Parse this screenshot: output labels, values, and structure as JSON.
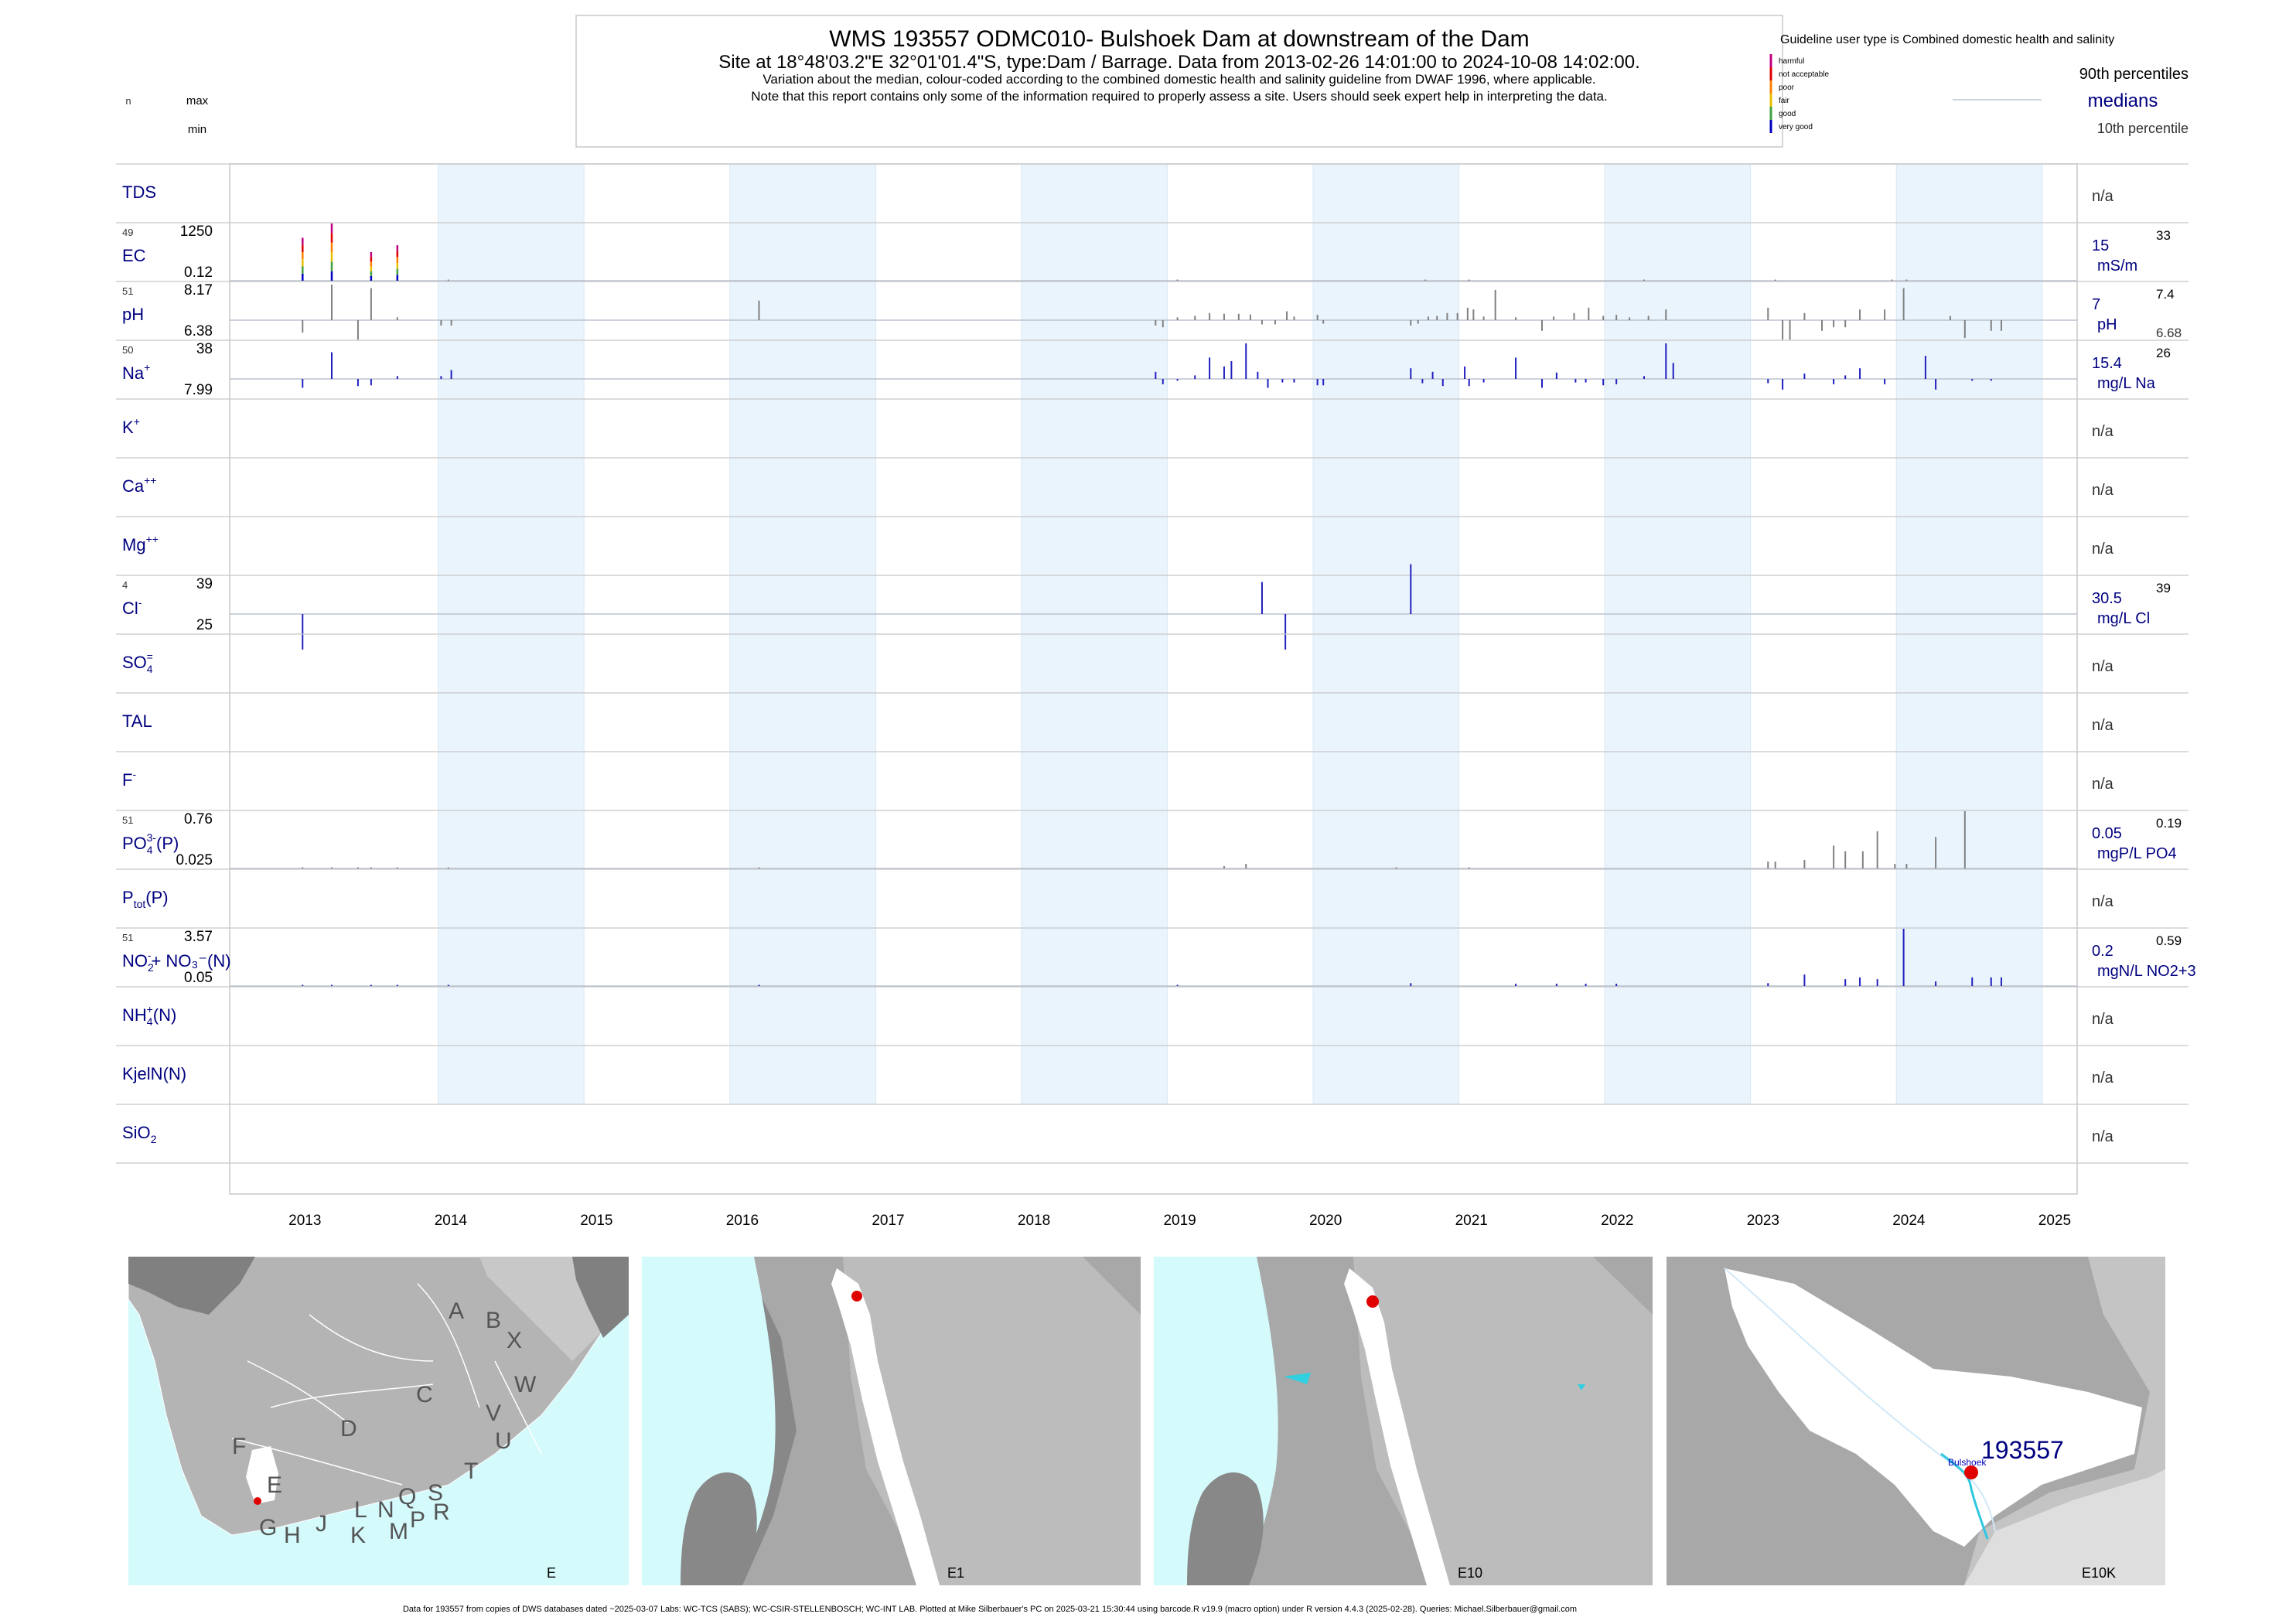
{
  "header": {
    "title": "WMS 193557  ODMC010- Bulshoek Dam at downstream of the Dam",
    "subtitle": "Site at 18°48'03.2\"E 32°01'01.4\"S, type:Dam / Barrage.  Data from 2013-02-26 14:01:00 to 2024-10-08 14:02:00.",
    "note1": "Variation about the median,  colour-coded according to the combined domestic health and salinity guideline from DWAF 1996, where applicable.",
    "note2": "Note that this report contains only some of the information required to properly assess a site. Users should seek expert help in interpreting the data."
  },
  "left_key": {
    "n": "n",
    "max": "max",
    "min": "min"
  },
  "legend": {
    "guideline": "Guideline user type is Combined domestic health and salinity",
    "categories": [
      {
        "label": "harmful",
        "color": "#c00080"
      },
      {
        "label": "not acceptable",
        "color": "#e00000"
      },
      {
        "label": "poor",
        "color": "#ff8000"
      },
      {
        "label": "fair",
        "color": "#e8c000"
      },
      {
        "label": "good",
        "color": "#40a040"
      },
      {
        "label": "very good",
        "color": "#0000c0"
      }
    ],
    "p90": "90th percentiles",
    "medians": "medians",
    "p10": "10th percentile"
  },
  "chart_data": {
    "type": "bar",
    "x_axis": {
      "ticks": [
        "2013",
        "2014",
        "2015",
        "2016",
        "2017",
        "2018",
        "2019",
        "2020",
        "2021",
        "2022",
        "2023",
        "2024",
        "2025"
      ],
      "range": [
        "2012-07-01",
        "2025-03-01"
      ]
    },
    "shaded_years": [
      "2014",
      "2016",
      "2018",
      "2020",
      "2022",
      "2024"
    ],
    "colors": {
      "bar_gray": "#808080",
      "bar_blue": "#2020c0",
      "shade": "#eaf4fc",
      "frame": "#c8c8c8"
    },
    "panels": [
      {
        "param": "TDS",
        "sup": "",
        "sub": "",
        "suffix": "",
        "na": "n/a"
      },
      {
        "param": "EC",
        "sup": "",
        "sub": "",
        "suffix": "",
        "n": "49",
        "max": "1250",
        "min": "0.12",
        "median": "15",
        "p90": "33",
        "unit": "mS/m",
        "color": "gray",
        "bars": [
          {
            "x": 2013.0,
            "v": 0.75,
            "colored": true
          },
          {
            "x": 2013.2,
            "v": 1.0,
            "colored": true
          },
          {
            "x": 2013.47,
            "v": 0.5,
            "colored": true
          },
          {
            "x": 2013.65,
            "v": 0.62,
            "colored": true
          },
          {
            "x": 2014.0,
            "v": 0.02
          },
          {
            "x": 2019.0,
            "v": 0.02
          },
          {
            "x": 2020.7,
            "v": 0.02
          },
          {
            "x": 2021.0,
            "v": 0.02
          },
          {
            "x": 2022.2,
            "v": 0.02
          },
          {
            "x": 2023.1,
            "v": 0.02
          },
          {
            "x": 2023.9,
            "v": 0.02
          },
          {
            "x": 2024.0,
            "v": 0.02
          }
        ]
      },
      {
        "param": "pH",
        "sup": "",
        "sub": "",
        "suffix": "",
        "n": "51",
        "max": "8.17",
        "min": "6.38",
        "median": "7",
        "p90": "7.4",
        "p10": "6.68",
        "unit": "pH",
        "color": "gray",
        "bars": [
          {
            "x": 2013.0,
            "v": -0.35
          },
          {
            "x": 2013.2,
            "v": 1.0
          },
          {
            "x": 2013.38,
            "v": -0.55
          },
          {
            "x": 2013.47,
            "v": 0.9
          },
          {
            "x": 2013.65,
            "v": 0.08
          },
          {
            "x": 2013.95,
            "v": -0.15
          },
          {
            "x": 2014.02,
            "v": -0.15
          },
          {
            "x": 2016.13,
            "v": 0.55
          },
          {
            "x": 2018.85,
            "v": -0.15
          },
          {
            "x": 2018.9,
            "v": -0.2
          },
          {
            "x": 2019.0,
            "v": 0.08
          },
          {
            "x": 2019.12,
            "v": 0.12
          },
          {
            "x": 2019.22,
            "v": 0.2
          },
          {
            "x": 2019.32,
            "v": 0.18
          },
          {
            "x": 2019.42,
            "v": 0.18
          },
          {
            "x": 2019.5,
            "v": 0.16
          },
          {
            "x": 2019.58,
            "v": -0.12
          },
          {
            "x": 2019.67,
            "v": -0.12
          },
          {
            "x": 2019.75,
            "v": 0.25
          },
          {
            "x": 2019.8,
            "v": 0.1
          },
          {
            "x": 2019.96,
            "v": 0.15
          },
          {
            "x": 2020.0,
            "v": -0.1
          },
          {
            "x": 2020.6,
            "v": -0.15
          },
          {
            "x": 2020.65,
            "v": -0.1
          },
          {
            "x": 2020.72,
            "v": 0.1
          },
          {
            "x": 2020.78,
            "v": 0.12
          },
          {
            "x": 2020.85,
            "v": 0.2
          },
          {
            "x": 2020.92,
            "v": 0.2
          },
          {
            "x": 2020.99,
            "v": 0.35
          },
          {
            "x": 2021.03,
            "v": 0.3
          },
          {
            "x": 2021.1,
            "v": 0.1
          },
          {
            "x": 2021.18,
            "v": 0.85
          },
          {
            "x": 2021.32,
            "v": 0.08
          },
          {
            "x": 2021.5,
            "v": -0.3
          },
          {
            "x": 2021.58,
            "v": 0.1
          },
          {
            "x": 2021.72,
            "v": 0.2
          },
          {
            "x": 2021.82,
            "v": 0.35
          },
          {
            "x": 2021.92,
            "v": 0.12
          },
          {
            "x": 2022.01,
            "v": 0.15
          },
          {
            "x": 2022.1,
            "v": 0.08
          },
          {
            "x": 2022.23,
            "v": 0.12
          },
          {
            "x": 2022.35,
            "v": 0.3
          },
          {
            "x": 2023.05,
            "v": 0.35
          },
          {
            "x": 2023.15,
            "v": -0.55
          },
          {
            "x": 2023.2,
            "v": -0.55
          },
          {
            "x": 2023.3,
            "v": 0.2
          },
          {
            "x": 2023.42,
            "v": -0.3
          },
          {
            "x": 2023.5,
            "v": -0.2
          },
          {
            "x": 2023.58,
            "v": -0.2
          },
          {
            "x": 2023.68,
            "v": 0.3
          },
          {
            "x": 2023.85,
            "v": 0.3
          },
          {
            "x": 2023.98,
            "v": 0.9
          },
          {
            "x": 2024.3,
            "v": 0.12
          },
          {
            "x": 2024.4,
            "v": -0.5
          },
          {
            "x": 2024.58,
            "v": -0.3
          },
          {
            "x": 2024.65,
            "v": -0.3
          }
        ]
      },
      {
        "param": "Na",
        "sup": "+",
        "sub": "",
        "suffix": "",
        "n": "50",
        "max": "38",
        "min": "7.99",
        "median": "15.4",
        "p90": "26",
        "unit": "mg/L Na",
        "color": "blue",
        "bars": [
          {
            "x": 2013.0,
            "v": -0.25
          },
          {
            "x": 2013.2,
            "v": 0.75
          },
          {
            "x": 2013.38,
            "v": -0.2
          },
          {
            "x": 2013.47,
            "v": -0.18
          },
          {
            "x": 2013.65,
            "v": 0.08
          },
          {
            "x": 2013.95,
            "v": 0.08
          },
          {
            "x": 2014.02,
            "v": 0.25
          },
          {
            "x": 2018.85,
            "v": 0.2
          },
          {
            "x": 2018.9,
            "v": -0.15
          },
          {
            "x": 2019.0,
            "v": -0.05
          },
          {
            "x": 2019.12,
            "v": 0.1
          },
          {
            "x": 2019.22,
            "v": 0.6
          },
          {
            "x": 2019.32,
            "v": 0.35
          },
          {
            "x": 2019.37,
            "v": 0.5
          },
          {
            "x": 2019.47,
            "v": 1.0
          },
          {
            "x": 2019.55,
            "v": 0.2
          },
          {
            "x": 2019.62,
            "v": -0.25
          },
          {
            "x": 2019.72,
            "v": -0.1
          },
          {
            "x": 2019.8,
            "v": -0.1
          },
          {
            "x": 2019.96,
            "v": -0.18
          },
          {
            "x": 2020.0,
            "v": -0.18
          },
          {
            "x": 2020.6,
            "v": 0.3
          },
          {
            "x": 2020.68,
            "v": -0.12
          },
          {
            "x": 2020.75,
            "v": 0.2
          },
          {
            "x": 2020.82,
            "v": -0.2
          },
          {
            "x": 2020.97,
            "v": 0.35
          },
          {
            "x": 2021.0,
            "v": -0.2
          },
          {
            "x": 2021.1,
            "v": -0.1
          },
          {
            "x": 2021.32,
            "v": 0.6
          },
          {
            "x": 2021.5,
            "v": -0.25
          },
          {
            "x": 2021.6,
            "v": 0.18
          },
          {
            "x": 2021.73,
            "v": -0.1
          },
          {
            "x": 2021.8,
            "v": -0.1
          },
          {
            "x": 2021.92,
            "v": -0.18
          },
          {
            "x": 2022.01,
            "v": -0.15
          },
          {
            "x": 2022.2,
            "v": 0.08
          },
          {
            "x": 2022.35,
            "v": 1.0
          },
          {
            "x": 2022.4,
            "v": 0.45
          },
          {
            "x": 2023.05,
            "v": -0.12
          },
          {
            "x": 2023.15,
            "v": -0.3
          },
          {
            "x": 2023.3,
            "v": 0.15
          },
          {
            "x": 2023.5,
            "v": -0.15
          },
          {
            "x": 2023.58,
            "v": 0.1
          },
          {
            "x": 2023.68,
            "v": 0.3
          },
          {
            "x": 2023.85,
            "v": -0.15
          },
          {
            "x": 2024.13,
            "v": 0.65
          },
          {
            "x": 2024.2,
            "v": -0.3
          },
          {
            "x": 2024.45,
            "v": -0.05
          },
          {
            "x": 2024.58,
            "v": -0.05
          }
        ]
      },
      {
        "param": "K",
        "sup": "+",
        "sub": "",
        "suffix": "",
        "na": "n/a"
      },
      {
        "param": "Ca",
        "sup": "++",
        "sub": "",
        "suffix": "",
        "na": "n/a"
      },
      {
        "param": "Mg",
        "sup": "++",
        "sub": "",
        "suffix": "",
        "na": "n/a"
      },
      {
        "param": "Cl",
        "sup": "-",
        "sub": "",
        "suffix": "",
        "n": "4",
        "max": "39",
        "min": "25",
        "median": "30.5",
        "p90": "39",
        "unit": "mg/L Cl",
        "color": "blue",
        "bars": [
          {
            "x": 2013.0,
            "v": -1.0
          },
          {
            "x": 2019.58,
            "v": 0.9
          },
          {
            "x": 2019.74,
            "v": -1.0
          },
          {
            "x": 2020.6,
            "v": 1.4
          }
        ]
      },
      {
        "param": "SO",
        "sup": "=",
        "sub": "4",
        "suffix": "",
        "na": "n/a"
      },
      {
        "param": "TAL",
        "sup": "",
        "sub": "",
        "suffix": "",
        "na": "n/a"
      },
      {
        "param": "F",
        "sup": "-",
        "sub": "",
        "suffix": "",
        "na": "n/a"
      },
      {
        "param": "PO",
        "sup": "3-",
        "sub": "4",
        "suffix": "(P)",
        "n": "51",
        "max": "0.76",
        "min": "0.025",
        "median": "0.05",
        "p90": "0.19",
        "unit": "mgP/L PO4",
        "color": "gray",
        "bars": [
          {
            "x": 2013.0,
            "v": 0.02
          },
          {
            "x": 2013.2,
            "v": 0.02
          },
          {
            "x": 2013.38,
            "v": 0.02
          },
          {
            "x": 2013.47,
            "v": 0.02
          },
          {
            "x": 2013.65,
            "v": 0.02
          },
          {
            "x": 2014.0,
            "v": 0.02
          },
          {
            "x": 2016.13,
            "v": 0.02
          },
          {
            "x": 2019.32,
            "v": 0.04
          },
          {
            "x": 2019.47,
            "v": 0.08
          },
          {
            "x": 2020.5,
            "v": 0.02
          },
          {
            "x": 2021.0,
            "v": 0.02
          },
          {
            "x": 2023.05,
            "v": 0.12
          },
          {
            "x": 2023.1,
            "v": 0.12
          },
          {
            "x": 2023.3,
            "v": 0.15
          },
          {
            "x": 2023.5,
            "v": 0.4
          },
          {
            "x": 2023.58,
            "v": 0.3
          },
          {
            "x": 2023.7,
            "v": 0.3
          },
          {
            "x": 2023.8,
            "v": 0.65
          },
          {
            "x": 2023.92,
            "v": 0.08
          },
          {
            "x": 2024.0,
            "v": 0.08
          },
          {
            "x": 2024.2,
            "v": 0.55
          },
          {
            "x": 2024.4,
            "v": 1.0
          }
        ]
      },
      {
        "param": "P",
        "sup": "",
        "sub": "tot",
        "suffix": "(P)",
        "na": "n/a"
      },
      {
        "param": "NO",
        "sup": "-",
        "sub": "2",
        "suffix": "+ NO₃⁻(N)",
        "n": "51",
        "max": "3.57",
        "min": "0.05",
        "median": "0.2",
        "p90": "0.59",
        "unit": "mgN/L NO2+3",
        "color": "blue",
        "bars": [
          {
            "x": 2013.0,
            "v": 0.02
          },
          {
            "x": 2013.2,
            "v": 0.02
          },
          {
            "x": 2013.47,
            "v": 0.02
          },
          {
            "x": 2013.65,
            "v": 0.02
          },
          {
            "x": 2014.0,
            "v": 0.02
          },
          {
            "x": 2016.13,
            "v": 0.02
          },
          {
            "x": 2019.0,
            "v": 0.02
          },
          {
            "x": 2020.6,
            "v": 0.05
          },
          {
            "x": 2021.32,
            "v": 0.04
          },
          {
            "x": 2021.6,
            "v": 0.04
          },
          {
            "x": 2021.8,
            "v": 0.04
          },
          {
            "x": 2022.01,
            "v": 0.04
          },
          {
            "x": 2023.05,
            "v": 0.05
          },
          {
            "x": 2023.3,
            "v": 0.2
          },
          {
            "x": 2023.58,
            "v": 0.12
          },
          {
            "x": 2023.68,
            "v": 0.15
          },
          {
            "x": 2023.8,
            "v": 0.12
          },
          {
            "x": 2023.98,
            "v": 1.0
          },
          {
            "x": 2024.2,
            "v": 0.08
          },
          {
            "x": 2024.45,
            "v": 0.15
          },
          {
            "x": 2024.58,
            "v": 0.15
          },
          {
            "x": 2024.65,
            "v": 0.15
          }
        ]
      },
      {
        "param": "NH",
        "sup": "+",
        "sub": "4",
        "suffix": "(N)",
        "na": "n/a"
      },
      {
        "param": "KjelN(N)",
        "sup": "",
        "sub": "",
        "suffix": "",
        "na": "n/a"
      },
      {
        "param": "SiO",
        "sup": "",
        "sub": "2",
        "suffix": "",
        "na": "n/a"
      }
    ]
  },
  "maps": [
    {
      "name": "E",
      "labels": [
        "A",
        "B",
        "X",
        "W",
        "C",
        "V",
        "U",
        "D",
        "T",
        "F",
        "E",
        "S",
        "R",
        "Q",
        "P",
        "L",
        "N",
        "M",
        "G",
        "H",
        "J",
        "K"
      ]
    },
    {
      "name": "E1"
    },
    {
      "name": "E10"
    },
    {
      "name": "E10K",
      "site_label": "193557",
      "place": "Bulshoek"
    }
  ],
  "footer": "Data for 193557 from copies of DWS databases dated ~2025-03-07 Labs: WC-TCS (SABS); WC-CSIR-STELLENBOSCH; WC-INT LAB. Plotted at Mike Silberbauer's PC on 2025-03-21 15:30:44 using barcode.R v19.9 (macro option) under R version 4.4.3 (2025-02-28). Queries: Michael.Silberbauer@gmail.com"
}
